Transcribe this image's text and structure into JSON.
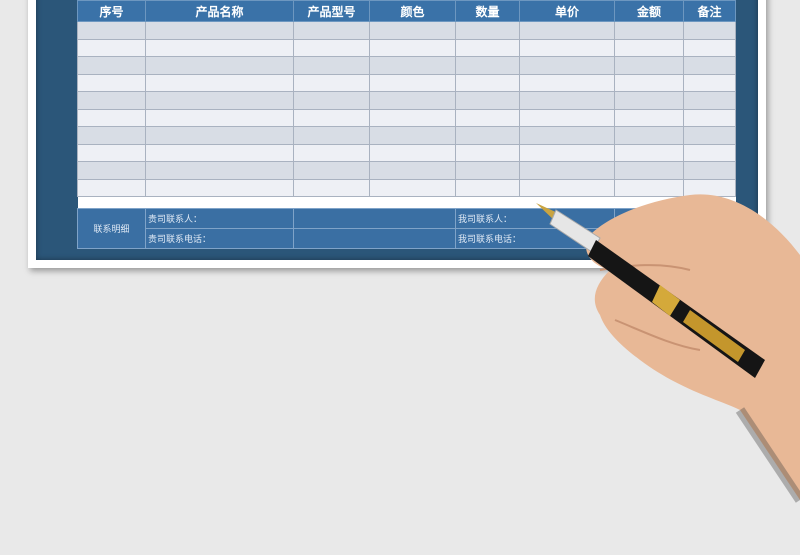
{
  "table": {
    "headers": [
      "序号",
      "产品名称",
      "产品型号",
      "颜色",
      "数量",
      "单价",
      "金额",
      "备注"
    ],
    "row_count": 10
  },
  "contact": {
    "section_label": "联系明细",
    "their_contact_label": "贵司联系人：",
    "their_phone_label": "贵司联系电话：",
    "our_contact_label": "我司联系人：",
    "our_phone_label": "我司联系电话："
  },
  "colors": {
    "header": "#3a72a8",
    "frame": "#2b5679",
    "row_odd": "#d8dde5",
    "row_even": "#eef0f5"
  }
}
